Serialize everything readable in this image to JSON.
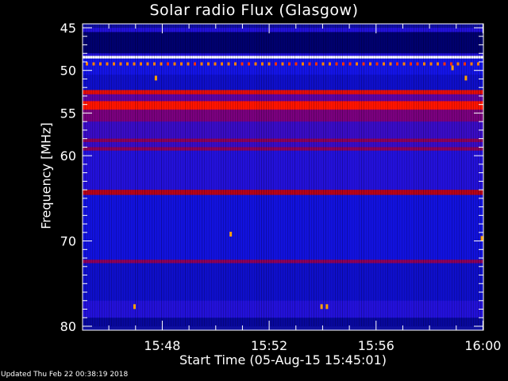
{
  "chart_data": {
    "type": "heatmap",
    "title": "Solar radio Flux (Glasgow)",
    "xlabel": "Start Time (05-Aug-15 15:45:01)",
    "ylabel": "Frequency [MHz]",
    "x_range_minutes": [
      "15:45:01",
      "16:00:00"
    ],
    "ylim": [
      45,
      80
    ],
    "y_inverted": true,
    "xticks": [
      "15:48",
      "15:52",
      "15:56",
      "16:00"
    ],
    "xtick_minutes": [
      3,
      7,
      11,
      15
    ],
    "yticks": [
      45,
      50,
      55,
      60,
      70,
      80
    ],
    "colormap": [
      "#000000",
      "#0000c0",
      "#3030ff",
      "#a00000",
      "#ff1000",
      "#ffa000",
      "#ffffff"
    ],
    "bands": [
      {
        "from": 45.0,
        "to": 45.5,
        "level": 0.3
      },
      {
        "from": 45.5,
        "to": 48.0,
        "level": 0.15
      },
      {
        "from": 48.0,
        "to": 48.3,
        "level": 0.3
      },
      {
        "from": 48.3,
        "to": 48.6,
        "level": 1.0
      },
      {
        "from": 48.6,
        "to": 49.0,
        "level": 0.28
      },
      {
        "from": 49.0,
        "to": 50.5,
        "level": 0.28
      },
      {
        "from": 50.5,
        "to": 52.3,
        "level": 0.25
      },
      {
        "from": 52.3,
        "to": 52.8,
        "level": 0.6
      },
      {
        "from": 52.8,
        "to": 53.6,
        "level": 0.38
      },
      {
        "from": 53.6,
        "to": 54.6,
        "level": 0.65
      },
      {
        "from": 54.6,
        "to": 56.0,
        "level": 0.42
      },
      {
        "from": 56.0,
        "to": 58.0,
        "level": 0.33
      },
      {
        "from": 58.0,
        "to": 58.4,
        "level": 0.45
      },
      {
        "from": 58.4,
        "to": 59.0,
        "level": 0.33
      },
      {
        "from": 59.0,
        "to": 59.4,
        "level": 0.45
      },
      {
        "from": 59.4,
        "to": 64.0,
        "level": 0.3
      },
      {
        "from": 64.0,
        "to": 64.6,
        "level": 0.52
      },
      {
        "from": 64.6,
        "to": 72.2,
        "level": 0.27
      },
      {
        "from": 72.2,
        "to": 72.6,
        "level": 0.45
      },
      {
        "from": 72.6,
        "to": 77.0,
        "level": 0.25
      },
      {
        "from": 77.0,
        "to": 79.0,
        "level": 0.3
      },
      {
        "from": 79.0,
        "to": 80.0,
        "level": 0.2
      }
    ],
    "bursts": [
      {
        "t": 2.7,
        "f": 50.9
      },
      {
        "t": 14.3,
        "f": 50.9
      },
      {
        "t": 13.8,
        "f": 49.7
      },
      {
        "t": 1.9,
        "f": 77.7
      },
      {
        "t": 8.9,
        "f": 77.7
      },
      {
        "t": 9.1,
        "f": 77.7
      },
      {
        "t": 5.5,
        "f": 69.2
      },
      {
        "t": 14.9,
        "f": 69.7
      }
    ]
  },
  "updated": "Updated Thu Feb 22 00:38:19 2018"
}
